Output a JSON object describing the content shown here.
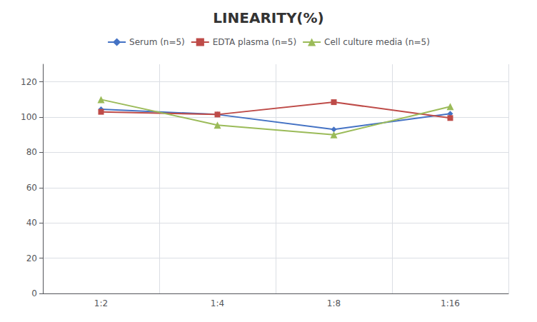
{
  "chart_data": {
    "type": "line",
    "title": "LINEARITY(%)",
    "categories": [
      "1:2",
      "1:4",
      "1:8",
      "1:16"
    ],
    "series": [
      {
        "name": "Serum (n=5)",
        "color": "#4472C4",
        "marker": "diamond",
        "values": [
          104.5,
          101.5,
          93.0,
          102.0
        ]
      },
      {
        "name": "EDTA plasma (n=5)",
        "color": "#BE4B48",
        "marker": "square",
        "values": [
          103.0,
          101.5,
          108.5,
          99.5
        ]
      },
      {
        "name": "Cell culture media (n=5)",
        "color": "#9BBB59",
        "marker": "triangle",
        "values": [
          110.0,
          95.5,
          90.0,
          106.0
        ]
      }
    ],
    "ylim": [
      0,
      130
    ],
    "yticks": [
      0,
      20,
      40,
      60,
      80,
      100,
      120
    ],
    "grid": true,
    "legend": "top"
  }
}
